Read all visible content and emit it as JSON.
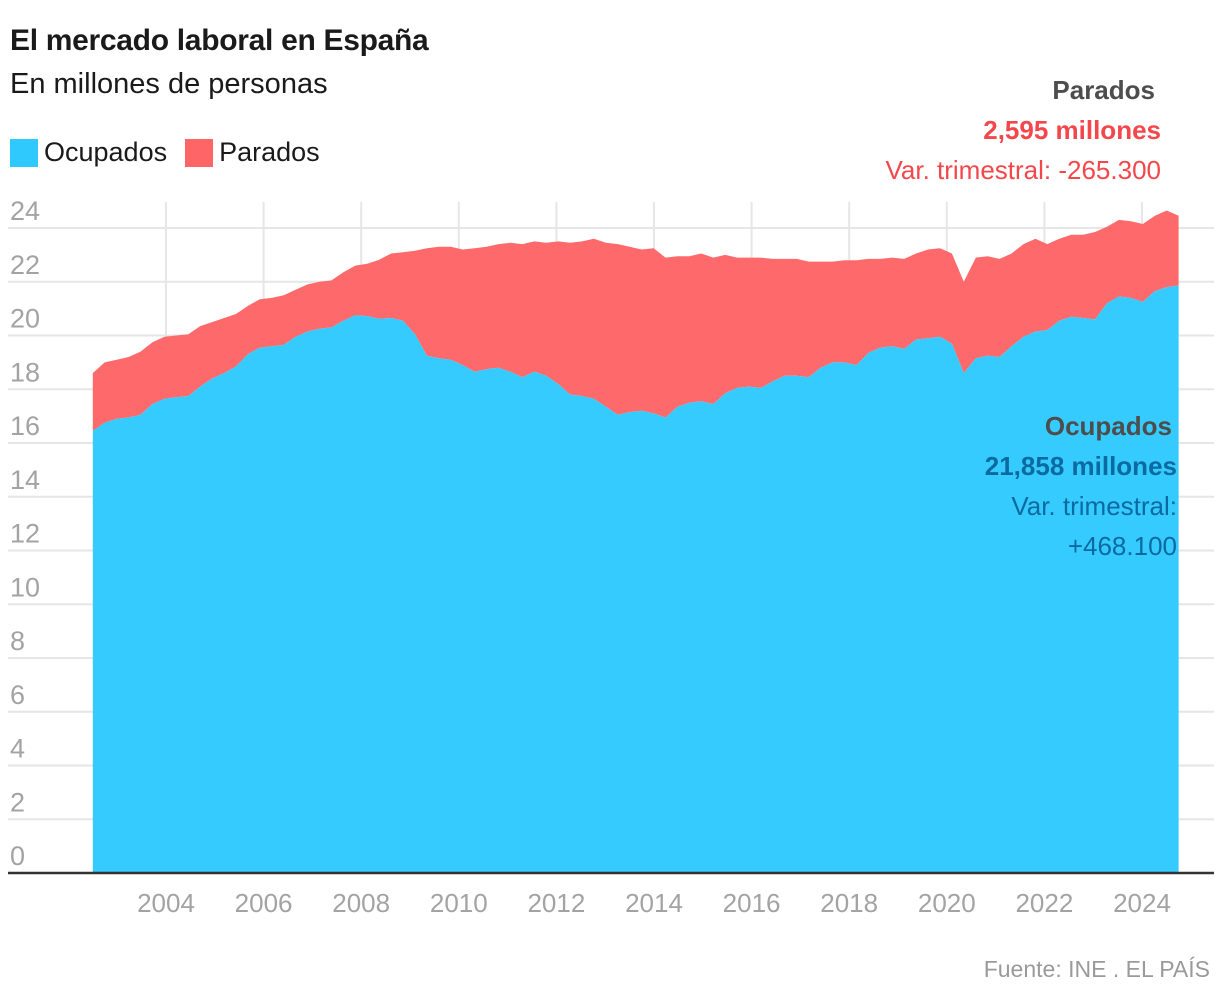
{
  "header": {
    "title": "El mercado laboral en España",
    "subtitle": "En millones de personas"
  },
  "legend": [
    {
      "label": "Ocupados",
      "color": "#30c9fe"
    },
    {
      "label": "Parados",
      "color": "#fe6566"
    }
  ],
  "annotations": {
    "parados": {
      "name": "Parados",
      "value": "2,595 millones",
      "var": "Var. trimestral: -265.300"
    },
    "ocupados": {
      "name": "Ocupados",
      "value": "21,858 millones",
      "var_label": "Var. trimestral:",
      "var_value": "+468.100"
    }
  },
  "source": "Fuente: INE . EL PAÍS",
  "chart_data": {
    "type": "area",
    "stacked": true,
    "title": "El mercado laboral en España",
    "subtitle": "En millones de personas",
    "xlabel": "",
    "ylabel": "",
    "x_start": "2002-Q3",
    "x_end": "2024-Q4",
    "frequency": "quarterly",
    "xlim": [
      2002.5,
      2024.75
    ],
    "ylim": [
      0,
      24
    ],
    "y_ticks": [
      0,
      2,
      4,
      6,
      8,
      10,
      12,
      14,
      16,
      18,
      20,
      22,
      24
    ],
    "x_ticks": [
      2004,
      2006,
      2008,
      2010,
      2012,
      2014,
      2016,
      2018,
      2020,
      2022,
      2024
    ],
    "x_tick_labels": [
      "2004",
      "2006",
      "2008",
      "2010",
      "2012",
      "2014",
      "2016",
      "2018",
      "2020",
      "2022",
      "2024"
    ],
    "grid": true,
    "legend_position": "top-left",
    "series": [
      {
        "name": "Ocupados",
        "color": "#30c9fe",
        "values": [
          16.45,
          16.75,
          16.9,
          16.95,
          17.05,
          17.45,
          17.65,
          17.7,
          17.75,
          18.1,
          18.4,
          18.6,
          18.85,
          19.3,
          19.55,
          19.6,
          19.65,
          19.95,
          20.15,
          20.25,
          20.3,
          20.55,
          20.75,
          20.72,
          20.62,
          20.65,
          20.55,
          20.05,
          19.25,
          19.15,
          19.1,
          18.9,
          18.65,
          18.75,
          18.8,
          18.65,
          18.45,
          18.65,
          18.5,
          18.2,
          17.8,
          17.75,
          17.65,
          17.35,
          17.05,
          17.15,
          17.2,
          17.1,
          16.95,
          17.35,
          17.5,
          17.55,
          17.45,
          17.85,
          18.05,
          18.1,
          18.05,
          18.3,
          18.5,
          18.5,
          18.45,
          18.8,
          19.0,
          19.0,
          18.9,
          19.35,
          19.55,
          19.6,
          19.5,
          19.85,
          19.9,
          19.95,
          19.7,
          18.6,
          19.15,
          19.25,
          19.2,
          19.6,
          19.95,
          20.15,
          20.2,
          20.55,
          20.7,
          20.65,
          20.6,
          21.2,
          21.45,
          21.4,
          21.25,
          21.65,
          21.8,
          21.86
        ],
        "last_value": 21.858
      },
      {
        "name": "Parados",
        "color": "#fe6566",
        "values": [
          2.15,
          2.25,
          2.2,
          2.25,
          2.35,
          2.3,
          2.3,
          2.3,
          2.3,
          2.25,
          2.1,
          2.05,
          1.95,
          1.8,
          1.8,
          1.8,
          1.85,
          1.75,
          1.75,
          1.75,
          1.75,
          1.8,
          1.85,
          1.95,
          2.2,
          2.4,
          2.55,
          3.1,
          4.0,
          4.15,
          4.2,
          4.3,
          4.6,
          4.55,
          4.6,
          4.8,
          4.95,
          4.85,
          4.95,
          5.3,
          5.65,
          5.75,
          5.95,
          6.1,
          6.35,
          6.15,
          6.0,
          6.15,
          5.95,
          5.6,
          5.45,
          5.5,
          5.45,
          5.15,
          4.85,
          4.8,
          4.85,
          4.55,
          4.35,
          4.35,
          4.3,
          3.95,
          3.75,
          3.8,
          3.9,
          3.5,
          3.3,
          3.3,
          3.35,
          3.2,
          3.3,
          3.3,
          3.35,
          3.4,
          3.75,
          3.7,
          3.65,
          3.45,
          3.45,
          3.45,
          3.2,
          3.05,
          3.05,
          3.1,
          3.25,
          2.85,
          2.85,
          2.85,
          2.9,
          2.8,
          2.85,
          2.595
        ],
        "last_value": 2.595
      }
    ]
  }
}
